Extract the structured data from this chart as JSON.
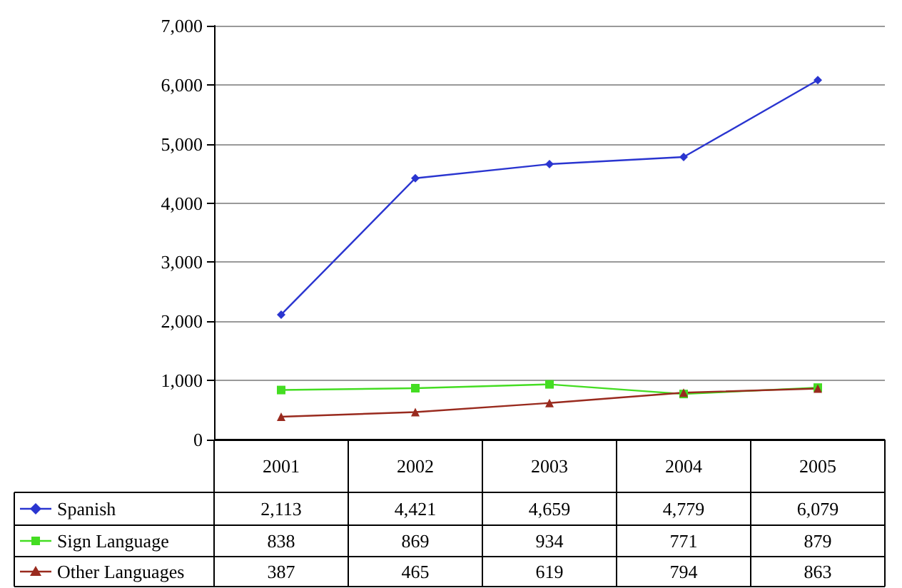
{
  "chart_data": {
    "type": "line",
    "categories": [
      "2001",
      "2002",
      "2003",
      "2004",
      "2005"
    ],
    "series": [
      {
        "name": "Spanish",
        "color": "#2a35d0",
        "marker": "diamond",
        "values": [
          2113,
          4421,
          4659,
          4779,
          6079
        ],
        "value_labels": [
          "2,113",
          "4,421",
          "4,659",
          "4,779",
          "6,079"
        ]
      },
      {
        "name": "Sign Language",
        "color": "#44dd22",
        "marker": "square",
        "values": [
          838,
          869,
          934,
          771,
          879
        ],
        "value_labels": [
          "838",
          "869",
          "934",
          "771",
          "879"
        ]
      },
      {
        "name": "Other Languages",
        "color": "#992a1e",
        "marker": "triangle",
        "values": [
          387,
          465,
          619,
          794,
          863
        ],
        "value_labels": [
          "387",
          "465",
          "619",
          "794",
          "863"
        ]
      }
    ],
    "ylim": [
      0,
      7000
    ],
    "yticks": [
      0,
      {
        "value": 1000,
        "label": "1,000"
      },
      {
        "value": 2000,
        "label": "2,000"
      },
      {
        "value": 3000,
        "label": "3,000"
      },
      {
        "value": 4000,
        "label": "4,000"
      },
      {
        "value": 5000,
        "label": "5,000"
      },
      {
        "value": 6000,
        "label": "6,000"
      },
      {
        "value": 7000,
        "label": "7,000"
      }
    ],
    "grid": "y",
    "legend": "bottom"
  }
}
